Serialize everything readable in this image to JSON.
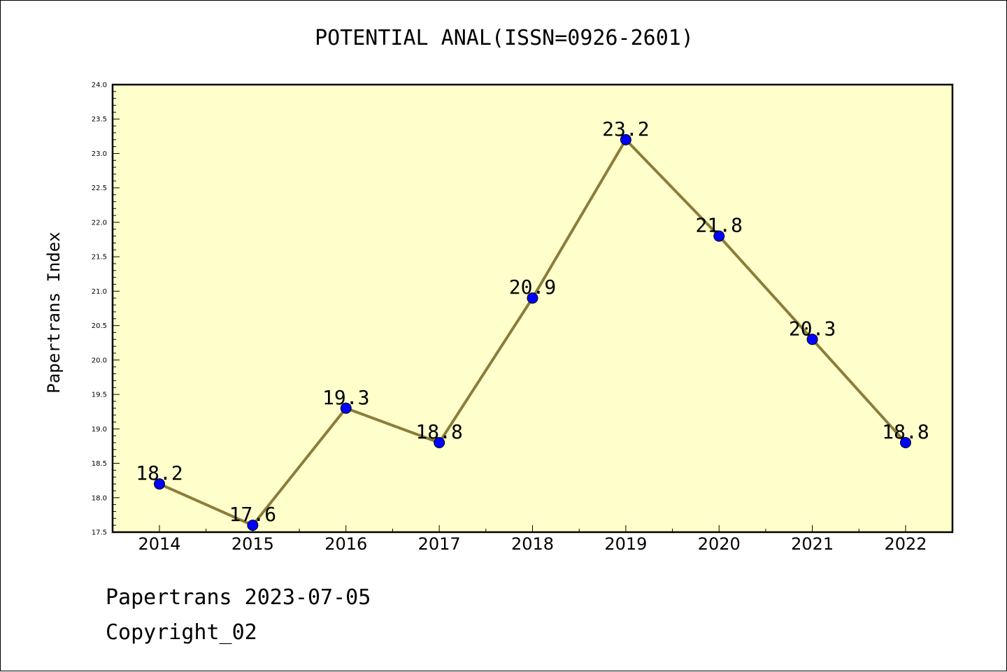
{
  "footer": {
    "date_line": "Papertrans 2023-07-05",
    "copyright": "Copyright_02"
  },
  "chart_data": {
    "type": "line",
    "title": "POTENTIAL ANAL(ISSN=0926-2601)",
    "xlabel": "",
    "ylabel": "Papertrans Index",
    "categories": [
      "2014",
      "2015",
      "2016",
      "2017",
      "2018",
      "2019",
      "2020",
      "2021",
      "2022"
    ],
    "series": [
      {
        "values": [
          18.2,
          17.6,
          19.3,
          18.8,
          20.9,
          23.2,
          21.8,
          20.3,
          18.8
        ],
        "data_labels": [
          "18.2",
          "17.6",
          "19.3",
          "18.8",
          "20.9",
          "23.2",
          "21.8",
          "20.3",
          "18.8"
        ]
      }
    ],
    "ylim": [
      17.5,
      24.0
    ],
    "yticks": [
      "17.5",
      "18.0",
      "18.5",
      "19.0",
      "19.5",
      "20.0",
      "20.5",
      "21.0",
      "21.5",
      "22.0",
      "22.5",
      "23.0",
      "23.5",
      "24.0"
    ],
    "grid": false,
    "legend": "none",
    "colors": {
      "plot_background": "#ffffcc",
      "line": "#8b7d3a",
      "marker": "#0000ff"
    }
  }
}
